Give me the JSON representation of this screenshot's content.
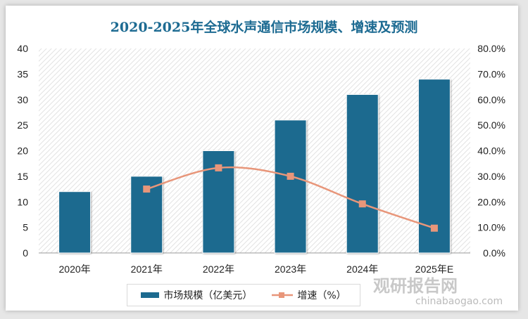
{
  "chart_data": {
    "type": "bar",
    "title": "2020-2025年全球水声通信市场规模、增速及预测",
    "categories": [
      "2020年",
      "2021年",
      "2022年",
      "2023年",
      "2024年",
      "2025年E"
    ],
    "series": [
      {
        "name": "市场规模（亿美元）",
        "type": "bar",
        "axis": "left",
        "values": [
          12,
          15,
          20,
          26,
          31,
          34
        ],
        "color": "#1c6a8f"
      },
      {
        "name": "增速（%）",
        "type": "line",
        "axis": "right",
        "values": [
          null,
          25.0,
          33.3,
          30.0,
          19.2,
          9.7
        ],
        "color": "#e8967a"
      }
    ],
    "ylim": [
      0,
      40
    ],
    "yticks": [
      "0",
      "5",
      "10",
      "15",
      "20",
      "25",
      "30",
      "35",
      "40"
    ],
    "y2lim": [
      0,
      80
    ],
    "y2ticks": [
      "0.0%",
      "10.0%",
      "20.0%",
      "30.0%",
      "40.0%",
      "50.0%",
      "60.0%",
      "70.0%",
      "80.0%"
    ],
    "legend": "bottom"
  },
  "watermark": {
    "brand": "观研报告网",
    "url": "chinabaogao.com"
  }
}
